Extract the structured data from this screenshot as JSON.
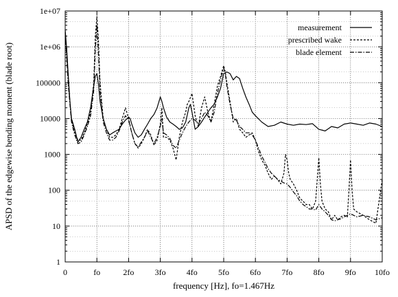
{
  "chart_data": {
    "type": "line",
    "title": "",
    "xlabel": "frequency [Hz],  fo=1.467Hz",
    "ylabel": "APSD of the edgewise bending moment (blade root)",
    "xlim": [
      0,
      10
    ],
    "ylim": [
      1,
      10000000
    ],
    "yscale": "log",
    "grid": true,
    "legend": "top-right",
    "x_ticks": [
      {
        "value": 0,
        "label": "0"
      },
      {
        "value": 1,
        "label": "fo"
      },
      {
        "value": 2,
        "label": "2fo"
      },
      {
        "value": 3,
        "label": "3fo"
      },
      {
        "value": 4,
        "label": "4fo"
      },
      {
        "value": 5,
        "label": "5fo"
      },
      {
        "value": 6,
        "label": "6fo"
      },
      {
        "value": 7,
        "label": "7fo"
      },
      {
        "value": 8,
        "label": "8fo"
      },
      {
        "value": 9,
        "label": "9fo"
      },
      {
        "value": 10,
        "label": "10fo"
      }
    ],
    "y_ticks": [
      {
        "value": 1,
        "label": "1"
      },
      {
        "value": 10,
        "label": "10"
      },
      {
        "value": 100,
        "label": "100"
      },
      {
        "value": 1000,
        "label": "1000"
      },
      {
        "value": 10000,
        "label": "10000"
      },
      {
        "value": 100000,
        "label": "100000"
      },
      {
        "value": 1000000,
        "label": "1e+06"
      },
      {
        "value": 10000000,
        "label": "1e+07"
      }
    ],
    "series": [
      {
        "name": "measurement",
        "style": "solid",
        "x": [
          0,
          0.05,
          0.1,
          0.15,
          0.2,
          0.3,
          0.4,
          0.5,
          0.6,
          0.7,
          0.8,
          0.9,
          0.95,
          1.0,
          1.05,
          1.1,
          1.2,
          1.3,
          1.4,
          1.5,
          1.6,
          1.7,
          1.8,
          1.9,
          2.0,
          2.05,
          2.1,
          2.2,
          2.3,
          2.4,
          2.5,
          2.6,
          2.7,
          2.8,
          2.9,
          3.0,
          3.05,
          3.1,
          3.2,
          3.3,
          3.4,
          3.5,
          3.6,
          3.7,
          3.8,
          3.9,
          3.95,
          4.0,
          4.1,
          4.2,
          4.3,
          4.4,
          4.5,
          4.6,
          4.7,
          4.8,
          4.9,
          5.0,
          5.1,
          5.2,
          5.3,
          5.4,
          5.5,
          5.6,
          5.7,
          5.8,
          5.9,
          6.0,
          6.2,
          6.4,
          6.6,
          6.8,
          7.0,
          7.2,
          7.4,
          7.6,
          7.8,
          8.0,
          8.2,
          8.4,
          8.6,
          8.8,
          9.0,
          9.2,
          9.4,
          9.6,
          9.8,
          10.0
        ],
        "y": [
          3000000,
          800000,
          150000,
          30000,
          10000,
          5000,
          2200,
          3000,
          5000,
          8000,
          20000,
          80000,
          150000,
          180000,
          90000,
          30000,
          10000,
          5000,
          3500,
          4000,
          4500,
          5000,
          7000,
          9000,
          11000,
          10000,
          7000,
          4000,
          3000,
          3500,
          5000,
          7000,
          10000,
          13000,
          20000,
          40000,
          30000,
          20000,
          11000,
          8000,
          7000,
          6000,
          5000,
          5500,
          8000,
          20000,
          25000,
          15000,
          5000,
          6000,
          8000,
          11000,
          15000,
          20000,
          25000,
          40000,
          70000,
          180000,
          200000,
          180000,
          120000,
          150000,
          130000,
          70000,
          40000,
          25000,
          15000,
          12000,
          8000,
          6000,
          6500,
          8000,
          7000,
          6500,
          7000,
          6800,
          7200,
          5000,
          4500,
          6000,
          5500,
          7000,
          7500,
          7000,
          6500,
          7500,
          7000,
          6000
        ]
      },
      {
        "name": "prescribed wake",
        "style": "dashed",
        "x": [
          0,
          0.05,
          0.1,
          0.2,
          0.3,
          0.4,
          0.5,
          0.6,
          0.7,
          0.8,
          0.9,
          0.95,
          1.0,
          1.05,
          1.1,
          1.2,
          1.3,
          1.4,
          1.5,
          1.6,
          1.7,
          1.8,
          1.9,
          2.0,
          2.1,
          2.2,
          2.3,
          2.4,
          2.5,
          2.6,
          2.7,
          2.8,
          2.9,
          3.0,
          3.05,
          3.1,
          3.2,
          3.3,
          3.4,
          3.5,
          3.6,
          3.7,
          3.8,
          3.85,
          3.9,
          4.0,
          4.1,
          4.2,
          4.3,
          4.4,
          4.5,
          4.6,
          4.7,
          4.8,
          4.9,
          5.0,
          5.05,
          5.1,
          5.2,
          5.3,
          5.4,
          5.5,
          5.6,
          5.7,
          5.8,
          5.9,
          6.0,
          6.1,
          6.2,
          6.3,
          6.4,
          6.5,
          6.6,
          6.7,
          6.8,
          6.9,
          6.95,
          7.0,
          7.05,
          7.1,
          7.2,
          7.3,
          7.4,
          7.5,
          7.6,
          7.7,
          7.8,
          7.9,
          7.95,
          8.0,
          8.05,
          8.1,
          8.2,
          8.3,
          8.4,
          8.5,
          8.6,
          8.7,
          8.8,
          8.9,
          8.95,
          9.0,
          9.05,
          9.1,
          9.2,
          9.4,
          9.6,
          9.8,
          9.95,
          10.0
        ],
        "y": [
          2000000,
          600000,
          100000,
          9000,
          4000,
          2500,
          2500,
          4000,
          7000,
          15000,
          100000,
          2000000,
          7000000,
          1500000,
          100000,
          10000,
          5000,
          3000,
          3000,
          3500,
          5000,
          10000,
          20000,
          10000,
          4000,
          2000,
          1500,
          2000,
          3000,
          5000,
          3500,
          1800,
          2500,
          7000,
          20000,
          3000,
          3000,
          2500,
          1500,
          700,
          3000,
          8000,
          15000,
          25000,
          30000,
          50000,
          12000,
          6000,
          20000,
          40000,
          15000,
          8000,
          25000,
          80000,
          150000,
          300000,
          200000,
          100000,
          30000,
          8000,
          10000,
          5000,
          4000,
          3000,
          3500,
          4000,
          2500,
          1200,
          700,
          500,
          300,
          200,
          250,
          200,
          150,
          300,
          1000,
          700,
          300,
          200,
          150,
          100,
          60,
          50,
          40,
          40,
          30,
          50,
          200,
          800,
          150,
          50,
          30,
          25,
          15,
          20,
          15,
          18,
          20,
          18,
          100,
          700,
          100,
          30,
          25,
          20,
          15,
          12,
          100,
          200
        ]
      },
      {
        "name": "blade element",
        "style": "dash-dot",
        "x": [
          0,
          0.05,
          0.1,
          0.2,
          0.3,
          0.4,
          0.5,
          0.6,
          0.7,
          0.8,
          0.9,
          0.95,
          1.0,
          1.05,
          1.1,
          1.2,
          1.3,
          1.4,
          1.5,
          1.6,
          1.7,
          1.8,
          1.9,
          2.0,
          2.1,
          2.2,
          2.3,
          2.4,
          2.5,
          2.6,
          2.7,
          2.8,
          2.9,
          3.0,
          3.05,
          3.1,
          3.2,
          3.3,
          3.4,
          3.5,
          3.6,
          3.7,
          3.8,
          3.9,
          4.0,
          4.1,
          4.2,
          4.3,
          4.4,
          4.5,
          4.6,
          4.7,
          4.8,
          4.9,
          5.0,
          5.05,
          5.1,
          5.2,
          5.3,
          5.4,
          5.5,
          5.6,
          5.7,
          5.8,
          5.9,
          6.0,
          6.1,
          6.2,
          6.3,
          6.4,
          6.5,
          6.6,
          6.7,
          6.8,
          6.9,
          7.0,
          7.1,
          7.2,
          7.3,
          7.4,
          7.5,
          7.6,
          7.7,
          7.8,
          7.9,
          8.0,
          8.1,
          8.2,
          8.3,
          8.4,
          8.5,
          8.6,
          8.7,
          8.8,
          8.9,
          9.0,
          9.1,
          9.2,
          9.4,
          9.6,
          9.8,
          10.0
        ],
        "y": [
          2500000,
          500000,
          80000,
          8000,
          3500,
          2000,
          2200,
          3500,
          6000,
          12000,
          60000,
          800000,
          4000000,
          600000,
          60000,
          8000,
          4000,
          2500,
          2500,
          3000,
          4500,
          8000,
          12000,
          9000,
          4000,
          2000,
          1600,
          2200,
          3000,
          4500,
          3000,
          2000,
          3000,
          6000,
          10000,
          4000,
          3500,
          2800,
          1800,
          1500,
          2500,
          4000,
          6000,
          8000,
          10000,
          9000,
          7000,
          10000,
          15000,
          12000,
          8000,
          15000,
          50000,
          120000,
          250000,
          180000,
          80000,
          25000,
          10000,
          9000,
          6000,
          5000,
          4000,
          4000,
          3500,
          2500,
          1500,
          900,
          600,
          400,
          300,
          250,
          200,
          180,
          160,
          150,
          120,
          90,
          70,
          50,
          40,
          35,
          30,
          30,
          28,
          40,
          30,
          25,
          20,
          15,
          14,
          15,
          16,
          18,
          20,
          22,
          20,
          18,
          20,
          18,
          15,
          17
        ]
      }
    ]
  }
}
